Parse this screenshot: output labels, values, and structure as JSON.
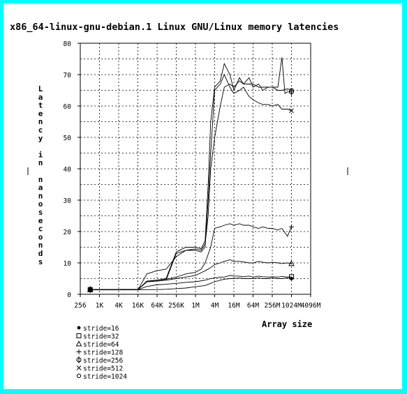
{
  "window": {
    "title": "x86_64-linux-gnu-debian.1 Linux GNU/Linux memory latencies",
    "border_color": "#00ffff"
  },
  "chart_data": {
    "type": "line",
    "title": "x86_64-linux-gnu-debian.1 Linux GNU/Linux memory latencies",
    "xlabel": "Array size",
    "ylabel": "Latency in nanoseconds",
    "x_scale": "log2",
    "x_unit": "MB",
    "xlim_mb": [
      0.00024414,
      4096
    ],
    "x_ticks": [
      {
        "label": "256",
        "mb": 0.00024414
      },
      {
        "label": "1K",
        "mb": 0.00097656
      },
      {
        "label": "4K",
        "mb": 0.00390625
      },
      {
        "label": "16K",
        "mb": 0.015625
      },
      {
        "label": "64K",
        "mb": 0.0625
      },
      {
        "label": "256K",
        "mb": 0.25
      },
      {
        "label": "1M",
        "mb": 1
      },
      {
        "label": "4M",
        "mb": 4
      },
      {
        "label": "16M",
        "mb": 16
      },
      {
        "label": "64M",
        "mb": 64
      },
      {
        "label": "256M",
        "mb": 256
      },
      {
        "label": "1024M",
        "mb": 1024
      },
      {
        "label": "4096M",
        "mb": 4096
      }
    ],
    "ylim": [
      0,
      80
    ],
    "y_ticks": [
      0,
      10,
      20,
      30,
      40,
      50,
      60,
      70,
      80
    ],
    "grid": true,
    "legend_position": "bottom-left",
    "series": [
      {
        "name": "stride=16",
        "marker": "dot",
        "x": [
          0.0005,
          0.001,
          0.004,
          0.016,
          0.03,
          0.06,
          0.12,
          0.25,
          0.5,
          1,
          2,
          3,
          4,
          6,
          8,
          12,
          16,
          24,
          32,
          48,
          64,
          96,
          128,
          192,
          256,
          384,
          512,
          768,
          1024
        ],
        "y": [
          1.4,
          1.4,
          1.4,
          1.4,
          1.5,
          1.5,
          1.6,
          1.8,
          2.0,
          2.4,
          2.8,
          3.5,
          4.0,
          4.5,
          4.8,
          5.0,
          5.0,
          5.2,
          5.0,
          5.0,
          5.0,
          5.2,
          5.0,
          5.0,
          5.2,
          5.0,
          5.0,
          5.2,
          5.0
        ]
      },
      {
        "name": "stride=32",
        "marker": "square",
        "x": [
          0.0005,
          0.001,
          0.004,
          0.016,
          0.03,
          0.06,
          0.12,
          0.25,
          0.5,
          1,
          2,
          3,
          4,
          6,
          8,
          12,
          16,
          24,
          32,
          48,
          64,
          96,
          128,
          192,
          256,
          384,
          512,
          768,
          1024
        ],
        "y": [
          1.5,
          1.5,
          1.5,
          1.5,
          2.5,
          3.0,
          3.2,
          3.5,
          3.8,
          4.0,
          4.5,
          5.0,
          5.2,
          5.5,
          5.5,
          6.0,
          5.8,
          5.8,
          5.6,
          5.8,
          5.5,
          5.8,
          5.6,
          5.5,
          5.6,
          5.5,
          5.7,
          5.5,
          5.6
        ]
      },
      {
        "name": "stride=64",
        "marker": "triangle",
        "x": [
          0.0005,
          0.001,
          0.004,
          0.016,
          0.03,
          0.06,
          0.12,
          0.25,
          0.5,
          1,
          2,
          3,
          4,
          6,
          8,
          12,
          16,
          24,
          32,
          48,
          64,
          96,
          128,
          192,
          256,
          384,
          512,
          768,
          1024
        ],
        "y": [
          1.5,
          1.5,
          1.5,
          1.6,
          4.0,
          4.2,
          4.5,
          5.0,
          5.5,
          6.0,
          7.5,
          8.5,
          9.5,
          10.0,
          10.5,
          11.0,
          10.5,
          10.5,
          10.3,
          10.0,
          10.0,
          10.5,
          10.2,
          10.0,
          10.2,
          10.0,
          9.8,
          10.0,
          9.8
        ]
      },
      {
        "name": "stride=128",
        "marker": "plus",
        "x": [
          0.0005,
          0.001,
          0.004,
          0.016,
          0.03,
          0.06,
          0.12,
          0.25,
          0.5,
          1,
          1.5,
          2,
          3,
          4,
          6,
          8,
          12,
          16,
          24,
          32,
          48,
          64,
          96,
          128,
          192,
          256,
          384,
          512,
          768,
          1024
        ],
        "y": [
          1.5,
          1.5,
          1.5,
          1.6,
          4.2,
          4.5,
          4.8,
          5.5,
          6.5,
          7.0,
          8.0,
          10.0,
          15.0,
          21.0,
          21.5,
          22.0,
          22.5,
          22.0,
          22.5,
          22.0,
          22.0,
          21.5,
          21.0,
          21.5,
          21.0,
          21.0,
          20.5,
          21.0,
          18.5,
          21.5
        ]
      },
      {
        "name": "stride=256",
        "marker": "phi",
        "x": [
          0.0005,
          0.001,
          0.004,
          0.016,
          0.03,
          0.06,
          0.12,
          0.25,
          0.5,
          1,
          1.5,
          2,
          2.5,
          3,
          4,
          6,
          8,
          12,
          16,
          24,
          32,
          48,
          64,
          96,
          128,
          192,
          256,
          384,
          512,
          640,
          768,
          1024
        ],
        "y": [
          1.5,
          1.5,
          1.5,
          1.6,
          4.0,
          4.2,
          4.5,
          13.0,
          14.0,
          14.5,
          14.0,
          16.0,
          25.0,
          40.0,
          50.0,
          60.0,
          66.0,
          67.0,
          66.0,
          68.0,
          67.0,
          67.0,
          67.0,
          66.0,
          66.0,
          66.0,
          66.0,
          66.0,
          75.5,
          64.0,
          64.5,
          64.5
        ]
      },
      {
        "name": "stride=512",
        "marker": "cross",
        "x": [
          0.0005,
          0.001,
          0.004,
          0.016,
          0.03,
          0.06,
          0.12,
          0.25,
          0.5,
          1,
          1.5,
          2,
          2.5,
          3,
          4,
          6,
          8,
          12,
          16,
          24,
          32,
          48,
          64,
          96,
          128,
          192,
          256,
          384,
          512,
          768,
          1024
        ],
        "y": [
          1.5,
          1.5,
          1.5,
          1.6,
          6.5,
          7.5,
          8.0,
          12.0,
          14.0,
          14.0,
          13.5,
          15.0,
          30.0,
          45.0,
          65.0,
          67.0,
          70.0,
          66.0,
          64.0,
          65.0,
          66.0,
          63.0,
          62.0,
          61.0,
          60.5,
          60.5,
          60.0,
          60.5,
          59.0,
          59.0,
          58.5
        ]
      },
      {
        "name": "stride=1024",
        "marker": "circle",
        "x": [
          0.0005,
          0.001,
          0.004,
          0.016,
          0.03,
          0.06,
          0.12,
          0.25,
          0.5,
          1,
          1.5,
          2,
          2.5,
          3,
          4,
          6,
          8,
          12,
          16,
          24,
          32,
          48,
          64,
          96,
          128,
          192,
          256,
          384,
          512,
          768,
          1024
        ],
        "y": [
          1.5,
          1.5,
          1.5,
          1.6,
          4.0,
          4.5,
          5.0,
          13.5,
          15.0,
          15.0,
          14.5,
          17.0,
          35.0,
          55.0,
          66.0,
          68.0,
          73.5,
          70.0,
          65.0,
          69.0,
          67.0,
          69.0,
          66.0,
          67.0,
          65.0,
          66.0,
          66.0,
          65.0,
          65.0,
          65.5,
          65.0
        ]
      }
    ]
  }
}
